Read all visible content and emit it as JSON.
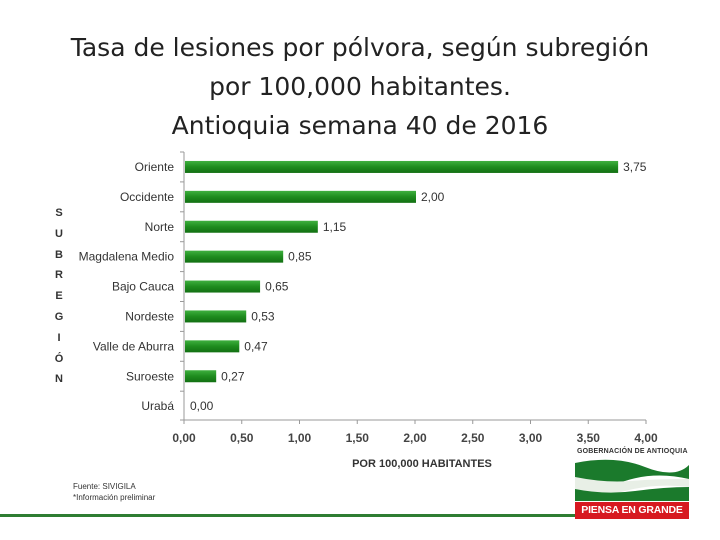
{
  "chart_data": {
    "type": "bar",
    "orientation": "horizontal",
    "title_lines": [
      "Tasa de lesiones por pólvora, según subregión",
      "por 100,000 habitantes.",
      "Antioquia semana 40 de 2016"
    ],
    "categories": [
      "Oriente",
      "Occidente",
      "Norte",
      "Magdalena Medio",
      "Bajo Cauca",
      "Nordeste",
      "Valle de Aburra",
      "Suroeste",
      "Urabá"
    ],
    "values": [
      3.75,
      2.0,
      1.15,
      0.85,
      0.65,
      0.53,
      0.47,
      0.27,
      0.0
    ],
    "value_labels": [
      "3,75",
      "2,00",
      "1,15",
      "0,85",
      "0,65",
      "0,53",
      "0,47",
      "0,27",
      "0,00"
    ],
    "xlabel": "POR 100,000 HABITANTES",
    "ylabel": "SUBREGIÓN",
    "ylabel_letters": [
      "S",
      "U",
      "B",
      "R",
      "E",
      "G",
      "I",
      "Ó",
      "N"
    ],
    "xlim": [
      0,
      4
    ],
    "x_ticks": [
      0,
      0.5,
      1,
      1.5,
      2,
      2.5,
      3,
      3.5,
      4
    ],
    "x_tick_labels": [
      "0,00",
      "0,50",
      "1,00",
      "1,50",
      "2,00",
      "2,50",
      "3,00",
      "3,50",
      "4,00"
    ],
    "grid": false,
    "bar_color": "#1e8c1e"
  },
  "footer": {
    "source": "Fuente: SIVIGILA",
    "note": "*Información preliminar"
  },
  "logo": {
    "org": "GOBERNACIÓN DE ANTIOQUIA",
    "slogan": "PIENSA EN GRANDE"
  }
}
